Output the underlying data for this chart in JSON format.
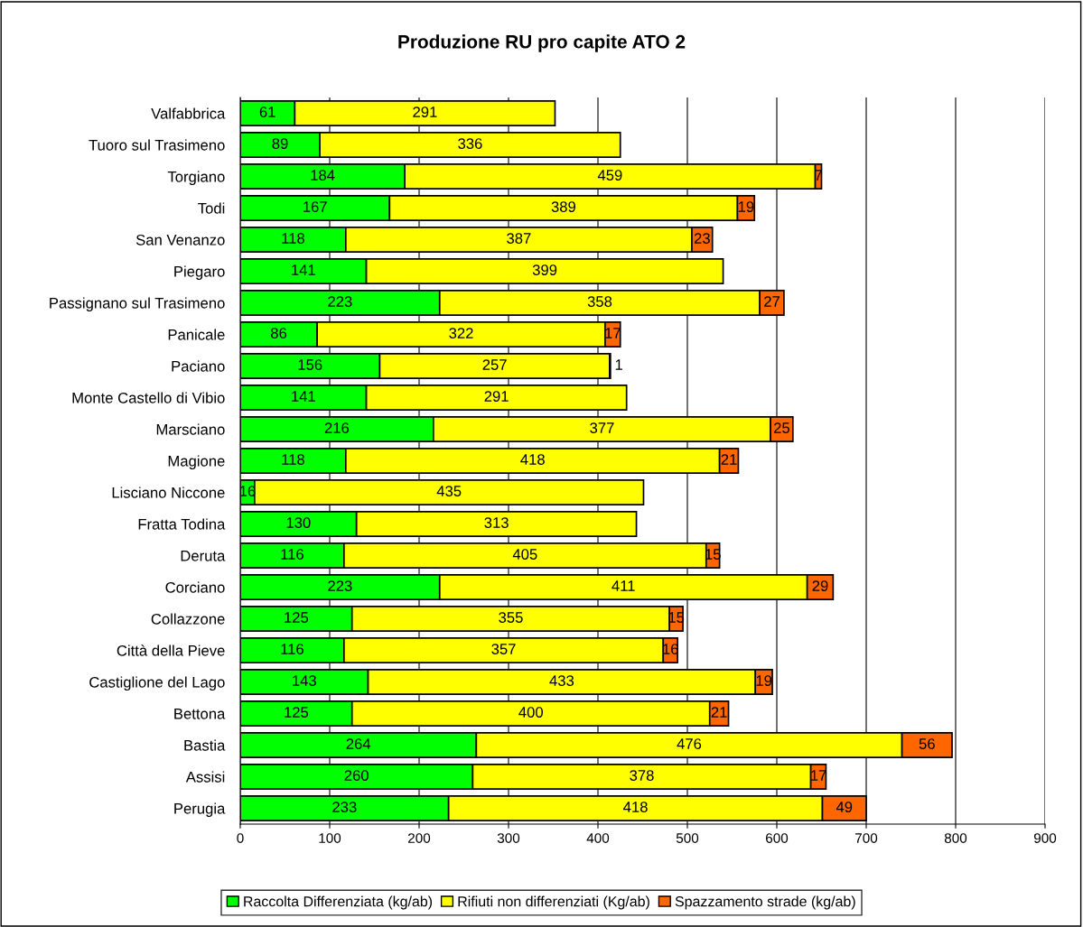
{
  "chart_data": {
    "type": "bar",
    "title": "Produzione RU pro capite ATO 2",
    "orientation": "horizontal",
    "stacked": true,
    "data_labels": true,
    "grid": "x",
    "legend": "bottom",
    "categories": [
      "Valfabbrica",
      "Tuoro sul Trasimeno",
      "Torgiano",
      "Todi",
      "San Venanzo",
      "Piegaro",
      "Passignano sul Trasimeno",
      "Panicale",
      "Paciano",
      "Monte Castello di Vibio",
      "Marsciano",
      "Magione",
      "Lisciano Niccone",
      "Fratta Todina",
      "Deruta",
      "Corciano",
      "Collazzone",
      "Città della Pieve",
      "Castiglione del Lago",
      "Bettona",
      "Bastia",
      "Assisi",
      "Perugia"
    ],
    "series": [
      {
        "name": "Raccolta Differenziata (kg/ab)",
        "color": "#00ff00",
        "values": [
          61,
          89,
          184,
          167,
          118,
          141,
          223,
          86,
          156,
          141,
          216,
          118,
          16,
          130,
          116,
          223,
          125,
          116,
          143,
          125,
          264,
          260,
          233
        ]
      },
      {
        "name": "Rifiuti non differenziati (Kg/ab)",
        "color": "#ffff00",
        "values": [
          291,
          336,
          459,
          389,
          387,
          399,
          358,
          322,
          257,
          291,
          377,
          418,
          435,
          313,
          405,
          411,
          355,
          357,
          433,
          400,
          476,
          378,
          418
        ]
      },
      {
        "name": "Spazzamento strade (kg/ab)",
        "color": "#ff6600",
        "values": [
          null,
          null,
          7,
          19,
          23,
          null,
          27,
          17,
          1,
          null,
          25,
          21,
          null,
          null,
          15,
          29,
          15,
          16,
          19,
          21,
          56,
          17,
          49
        ]
      }
    ],
    "xlim": [
      0,
      900
    ],
    "xticks": [
      0,
      100,
      200,
      300,
      400,
      500,
      600,
      700,
      800,
      900
    ]
  }
}
